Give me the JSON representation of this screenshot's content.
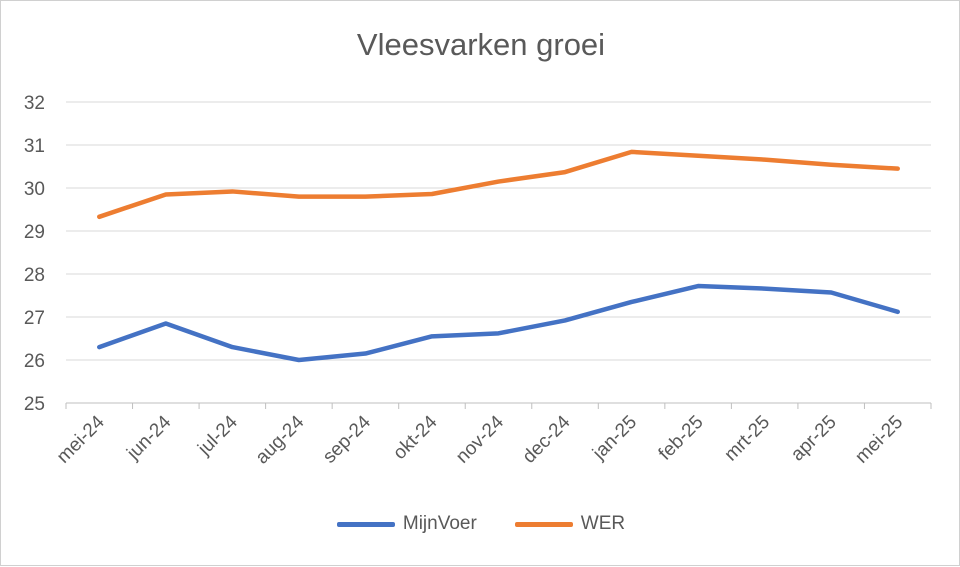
{
  "chart_data": {
    "type": "line",
    "title": "Vleesvarken groei",
    "xlabel": "",
    "ylabel": "",
    "categories": [
      "mei-24",
      "jun-24",
      "jul-24",
      "aug-24",
      "sep-24",
      "okt-24",
      "nov-24",
      "dec-24",
      "jan-25",
      "feb-25",
      "mrt-25",
      "apr-25",
      "mei-25"
    ],
    "ylim": [
      25,
      32
    ],
    "yticks": [
      "25",
      "26",
      "27",
      "28",
      "29",
      "30",
      "31",
      "32"
    ],
    "grid": true,
    "legend": "bottom",
    "series": [
      {
        "name": "MijnVoer",
        "color": "#4472C4",
        "values": [
          26.3,
          26.85,
          26.3,
          26.0,
          26.15,
          26.55,
          26.62,
          26.92,
          27.35,
          27.72,
          27.66,
          27.57,
          27.12
        ]
      },
      {
        "name": "WER",
        "color": "#ED7D31",
        "values": [
          29.33,
          29.85,
          29.92,
          29.8,
          29.8,
          29.86,
          30.15,
          30.37,
          30.84,
          30.75,
          30.66,
          30.54,
          30.45
        ]
      }
    ]
  }
}
